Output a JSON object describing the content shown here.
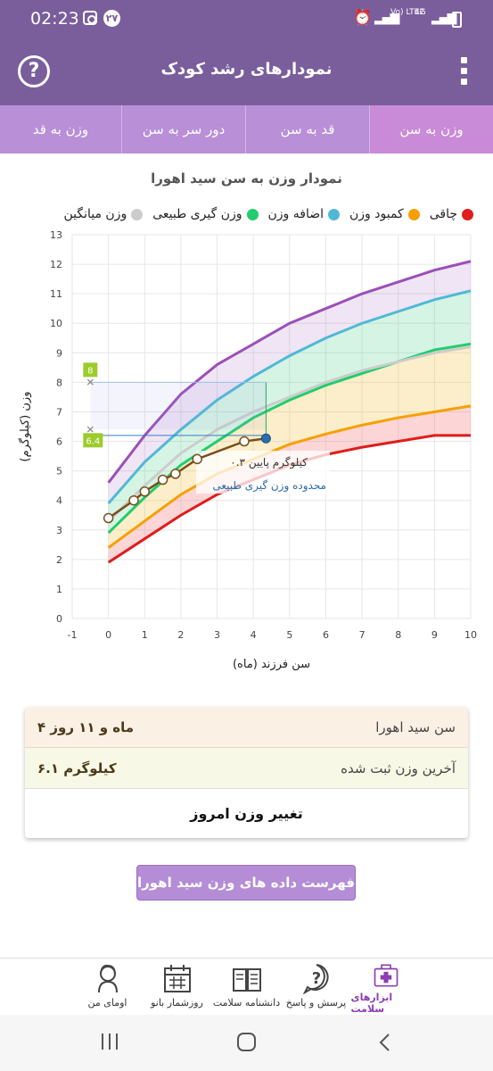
{
  "status_bar": {
    "time": "02:23",
    "notification_count": "۲۷",
    "network": "Vo) LTE2",
    "network2": "4G"
  },
  "app_bar": {
    "title": "نمودارهای رشد کودک",
    "help_symbol": "?"
  },
  "tabs": [
    {
      "label": "وزن به قد"
    },
    {
      "label": "دور سر به سن"
    },
    {
      "label": "قد به سن"
    },
    {
      "label": "وزن به سن",
      "active": true
    }
  ],
  "chart": {
    "title": "نمودار وزن به سن  سید اهورا",
    "legend": [
      {
        "label": "چاقی",
        "color": "#e01c1c"
      },
      {
        "label": "کمبود وزن",
        "color": "#f5a000"
      },
      {
        "label": "اضافه وزن",
        "color": "#50b8d6"
      },
      {
        "label": "وزن گیری طبیعی",
        "color": "#23cc6e"
      },
      {
        "label": "وزن میانگین",
        "color": "#cccccc"
      }
    ],
    "annotation_line1": "۰.۳ کیلوگرم پایین",
    "annotation_line2": "محدوده وزن گیری طبیعی",
    "marker_upper": "8",
    "marker_lower": "6.4"
  },
  "chart_data": {
    "type": "line",
    "title": "نمودار وزن به سن  سید اهورا",
    "xlabel": "سن فرزند (ماه)",
    "ylabel": "وزن (کیلوگرم)",
    "xlim": [
      -1,
      10
    ],
    "ylim": [
      0,
      13
    ],
    "x_ticks": [
      -1,
      0,
      1,
      2,
      3,
      4,
      5,
      6,
      7,
      8,
      9,
      10
    ],
    "y_ticks": [
      0,
      1,
      2,
      3,
      4,
      5,
      6,
      7,
      8,
      9,
      10,
      11,
      12,
      13
    ],
    "grid": true,
    "x": [
      0,
      1,
      2,
      3,
      4,
      5,
      6,
      7,
      8,
      9,
      10
    ],
    "series": [
      {
        "name": "چاقی",
        "color": "#e01c1c",
        "values": [
          1.9,
          2.7,
          3.5,
          4.2,
          4.7,
          5.2,
          5.55,
          5.8,
          6.0,
          6.2,
          6.2
        ]
      },
      {
        "name": "کمبود وزن",
        "color": "#f5a000",
        "values": [
          2.4,
          3.3,
          4.2,
          4.9,
          5.4,
          5.9,
          6.25,
          6.55,
          6.8,
          7.0,
          7.2
        ]
      },
      {
        "name": "وزن گیری طبیعی",
        "color": "#23cc6e",
        "values": [
          2.9,
          4.1,
          5.2,
          6.0,
          6.8,
          7.4,
          7.9,
          8.3,
          8.7,
          9.1,
          9.3
        ]
      },
      {
        "name": "وزن میانگین",
        "color": "#cccccc",
        "values": [
          3.3,
          4.5,
          5.6,
          6.4,
          7.0,
          7.5,
          8.0,
          8.4,
          8.7,
          9.0,
          9.2
        ]
      },
      {
        "name": "اضافه وزن",
        "color": "#50b8d6",
        "values": [
          3.9,
          5.3,
          6.4,
          7.4,
          8.2,
          8.9,
          9.5,
          10.0,
          10.4,
          10.8,
          11.1
        ]
      },
      {
        "name": "چاقی",
        "color": "#9b4fb8",
        "values": [
          4.6,
          6.2,
          7.6,
          8.6,
          9.3,
          10.0,
          10.5,
          11.0,
          11.4,
          11.8,
          12.1
        ]
      }
    ],
    "child_measurements": {
      "x": [
        0,
        0.7,
        1.0,
        1.5,
        1.85,
        2.45,
        3.75,
        4.35
      ],
      "y": [
        3.4,
        4.0,
        4.3,
        4.7,
        4.9,
        5.4,
        6.0,
        6.1
      ]
    },
    "current_point": {
      "x": 4.35,
      "y": 6.1
    },
    "markers": [
      {
        "label": "8",
        "y": 8.0
      },
      {
        "label": "6.4",
        "y": 6.4
      }
    ]
  },
  "info": {
    "age_label": "سن  سید اهورا",
    "age_value": "۴ ماه و ۱۱ روز",
    "weight_label": "آخرین وزن ثبت شده",
    "weight_value": "۶.۱ کیلوگرم",
    "change_button": "تغییر وزن امروز"
  },
  "list_button": "فهرست داده های وزن  سید اهورا",
  "bottom_nav": [
    {
      "label": "اومای من",
      "icon": "user-icon"
    },
    {
      "label": "روزشمار بانو",
      "icon": "calendar-icon"
    },
    {
      "label": "دانشنامه سلامت",
      "icon": "book-icon"
    },
    {
      "label": "پرسش و پاسخ",
      "icon": "question-icon"
    },
    {
      "label": "ابزارهای سلامت",
      "icon": "medkit-icon",
      "active": true
    }
  ]
}
